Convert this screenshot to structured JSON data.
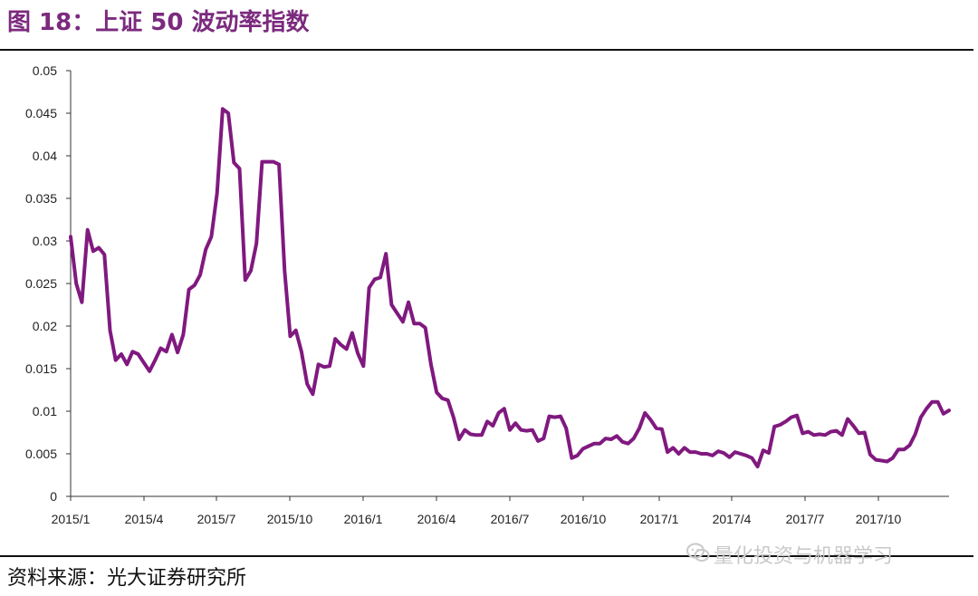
{
  "header": {
    "title": "图 18：上证 50 波动率指数"
  },
  "footer": {
    "source": "资料来源：光大证券研究所"
  },
  "watermark": {
    "text": "量化投资与机器学习",
    "icon": "wechat-icon"
  },
  "chart_data": {
    "type": "line",
    "title": "",
    "xlabel": "",
    "ylabel": "",
    "ylim": [
      0,
      0.05
    ],
    "yticks": [
      "0",
      "0.005",
      "0.01",
      "0.015",
      "0.02",
      "0.025",
      "0.03",
      "0.035",
      "0.04",
      "0.045",
      "0.05"
    ],
    "xticks": [
      "2015/1",
      "2015/4",
      "2015/7",
      "2015/10",
      "2016/1",
      "2016/4",
      "2016/7",
      "2016/10",
      "2017/1",
      "2017/4",
      "2017/7",
      "2017/10"
    ],
    "grid": false,
    "legend": "none",
    "color": "#80197f",
    "series": [
      {
        "name": "",
        "values": [
          0.0305,
          0.025,
          0.0228,
          0.0313,
          0.0288,
          0.0292,
          0.0284,
          0.0195,
          0.016,
          0.0167,
          0.0155,
          0.017,
          0.0167,
          0.0157,
          0.0147,
          0.016,
          0.0174,
          0.017,
          0.019,
          0.0169,
          0.019,
          0.0243,
          0.0248,
          0.026,
          0.029,
          0.0305,
          0.0356,
          0.0455,
          0.045,
          0.0392,
          0.0385,
          0.0254,
          0.0265,
          0.0297,
          0.0393,
          0.0393,
          0.0393,
          0.039,
          0.0265,
          0.0188,
          0.0195,
          0.017,
          0.0132,
          0.012,
          0.0155,
          0.0152,
          0.0153,
          0.0185,
          0.0178,
          0.0173,
          0.0192,
          0.0168,
          0.0153,
          0.0245,
          0.0255,
          0.0257,
          0.0285,
          0.0225,
          0.0215,
          0.0205,
          0.0228,
          0.0203,
          0.0203,
          0.0198,
          0.0155,
          0.0122,
          0.0115,
          0.0113,
          0.0093,
          0.0067,
          0.0078,
          0.0073,
          0.0072,
          0.0072,
          0.0088,
          0.0083,
          0.0098,
          0.0103,
          0.0078,
          0.0086,
          0.0078,
          0.0077,
          0.0078,
          0.0065,
          0.0068,
          0.0094,
          0.0093,
          0.0094,
          0.008,
          0.0045,
          0.0048,
          0.0056,
          0.0059,
          0.0062,
          0.0062,
          0.0068,
          0.0067,
          0.0071,
          0.0064,
          0.0062,
          0.0068,
          0.008,
          0.0098,
          0.009,
          0.008,
          0.0079,
          0.0052,
          0.0057,
          0.005,
          0.0057,
          0.0052,
          0.0052,
          0.005,
          0.005,
          0.0048,
          0.0053,
          0.0051,
          0.0046,
          0.0052,
          0.005,
          0.0048,
          0.0045,
          0.0035,
          0.0054,
          0.0051,
          0.0082,
          0.0084,
          0.0088,
          0.0093,
          0.0095,
          0.0074,
          0.0076,
          0.0072,
          0.0073,
          0.0072,
          0.0076,
          0.0077,
          0.0072,
          0.0091,
          0.0083,
          0.0074,
          0.0075,
          0.0049,
          0.0043,
          0.0042,
          0.0041,
          0.0045,
          0.0055,
          0.0055,
          0.006,
          0.0073,
          0.0093,
          0.0103,
          0.0111,
          0.0111,
          0.0097,
          0.0101
        ]
      }
    ]
  }
}
